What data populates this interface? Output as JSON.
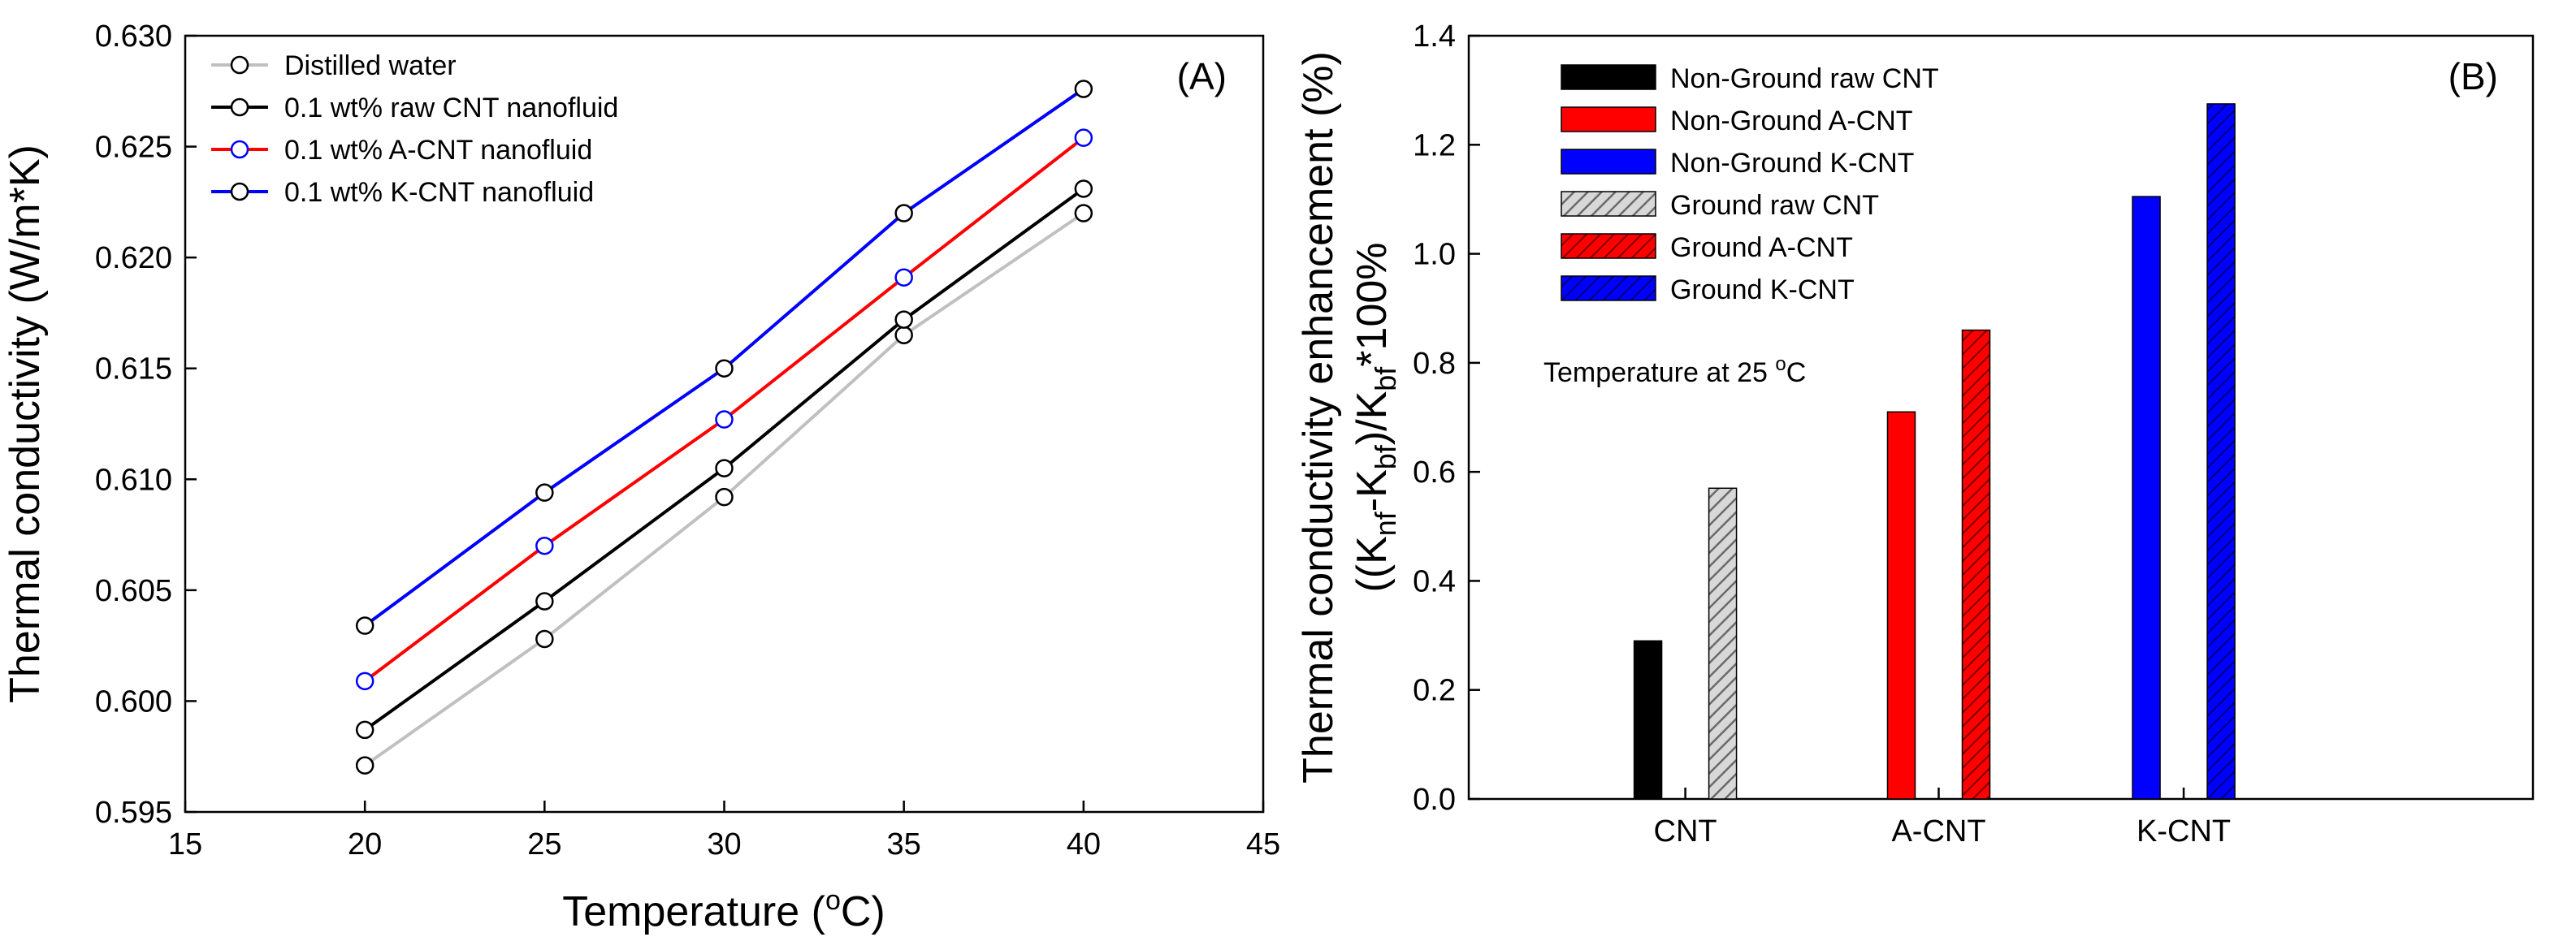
{
  "chart_data": [
    {
      "type": "line",
      "panel_label": "(A)",
      "xlabel_main": "Temperature (",
      "xlabel_sup": "o",
      "xlabel_end": "C)",
      "ylabel": "Thermal conductivity (W/m*K)",
      "xlim": [
        15,
        45
      ],
      "ylim": [
        0.595,
        0.63
      ],
      "x_ticks": [
        15,
        20,
        25,
        30,
        35,
        40,
        45
      ],
      "y_ticks": [
        0.595,
        0.6,
        0.605,
        0.61,
        0.615,
        0.62,
        0.625,
        0.63
      ],
      "y_tick_labels": [
        "0.595",
        "0.600",
        "0.605",
        "0.610",
        "0.615",
        "0.620",
        "0.625",
        "0.630"
      ],
      "x": [
        20,
        25,
        30,
        35,
        40
      ],
      "legend_position": "top-left",
      "series": [
        {
          "name": "Distilled water",
          "color": "#c0c0c0",
          "marker_color": "#000000",
          "values": [
            0.5971,
            0.6028,
            0.6092,
            0.6165,
            0.622
          ]
        },
        {
          "name": "0.1 wt% raw CNT nanofluid",
          "color": "#000000",
          "marker_color": "#000000",
          "values": [
            0.5987,
            0.6045,
            0.6105,
            0.6172,
            0.6231
          ]
        },
        {
          "name": "0.1 wt% A-CNT nanofluid",
          "color": "#ff0000",
          "marker_color": "#0000ff",
          "values": [
            0.6009,
            0.607,
            0.6127,
            0.6191,
            0.6254
          ]
        },
        {
          "name": "0.1 wt% K-CNT nanofluid",
          "color": "#0000ff",
          "marker_color": "#000000",
          "values": [
            0.6034,
            0.6094,
            0.615,
            0.622,
            0.6276
          ]
        }
      ]
    },
    {
      "type": "bar",
      "panel_label": "(B)",
      "ylabel_line1": "Thermal conductivity enhancement (%)",
      "ylabel_line2": "((K",
      "ylabel_sub1": "nf",
      "ylabel_mid": "-K",
      "ylabel_sub2": "bf",
      "ylabel_mid2": ")/K",
      "ylabel_sub3": "bf",
      "ylabel_end": "*100%",
      "ylim": [
        0.0,
        1.4
      ],
      "y_ticks": [
        0.0,
        0.2,
        0.4,
        0.6,
        0.8,
        1.0,
        1.2,
        1.4
      ],
      "y_tick_labels": [
        "0.0",
        "0.2",
        "0.4",
        "0.6",
        "0.8",
        "1.0",
        "1.2",
        "1.4"
      ],
      "categories": [
        "CNT",
        "A-CNT",
        "K-CNT"
      ],
      "annotation_main": "Temperature at 25 ",
      "annotation_sup": "o",
      "annotation_end": "C",
      "legend_position": "top-left",
      "series": [
        {
          "name": "Non-Ground raw CNT",
          "color": "#000000",
          "hatched": false,
          "category": "CNT",
          "value": 0.29
        },
        {
          "name": "Non-Ground A-CNT",
          "color": "#ff0000",
          "hatched": false,
          "category": "A-CNT",
          "value": 0.71
        },
        {
          "name": "Non-Ground K-CNT",
          "color": "#0000ff",
          "hatched": false,
          "category": "K-CNT",
          "value": 1.105
        },
        {
          "name": "Ground raw CNT",
          "color": "#a0a0a0",
          "hatched": true,
          "category": "CNT",
          "value": 0.57
        },
        {
          "name": "Ground A-CNT",
          "color": "#ff0000",
          "hatched": true,
          "category": "A-CNT",
          "value": 0.86
        },
        {
          "name": "Ground K-CNT",
          "color": "#0000ff",
          "hatched": true,
          "category": "K-CNT",
          "value": 1.275
        }
      ]
    }
  ]
}
